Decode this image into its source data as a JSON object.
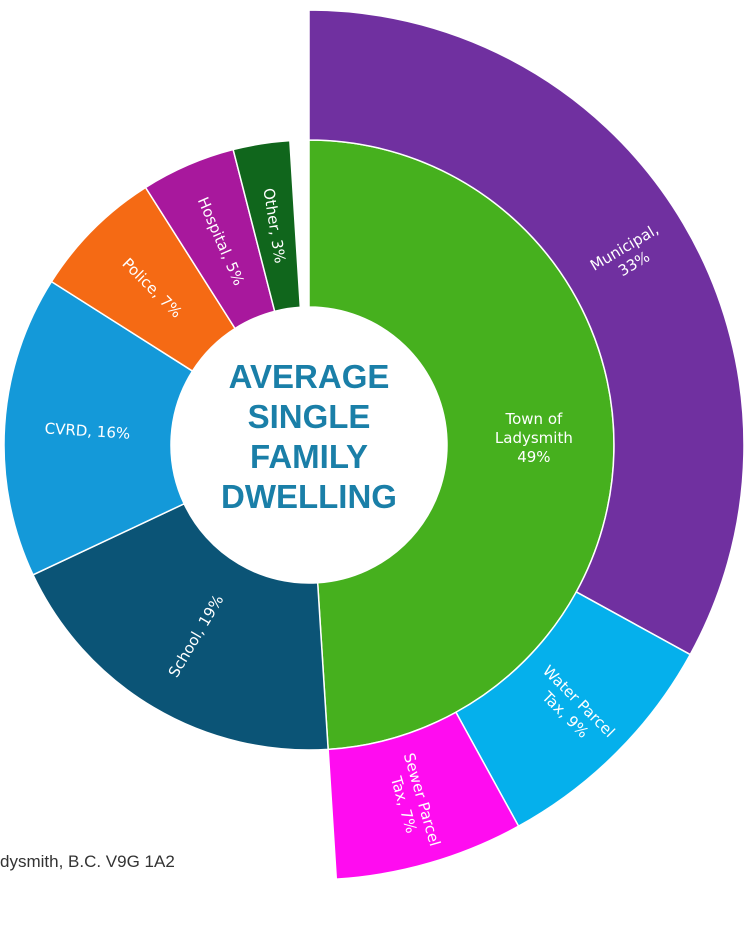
{
  "center": {
    "lines": [
      "AVERAGE",
      "SINGLE",
      "FAMILY",
      "DWELLING"
    ],
    "color": "#1a7fa8"
  },
  "footer": {
    "text": "dysmith, B.C. V9G 1A2"
  },
  "chart_data": {
    "type": "pie",
    "subtype": "sunburst",
    "inner_ring": [
      {
        "label": "Town of Ladysmith",
        "value": 49,
        "color": "#46b01e",
        "text_lines": [
          "Town of",
          "Ladysmith",
          "49%"
        ]
      },
      {
        "label": "School",
        "value": 19,
        "color": "#0b5476",
        "text_lines": [
          "School, 19%"
        ]
      },
      {
        "label": "CVRD",
        "value": 16,
        "color": "#1499d9",
        "text_lines": [
          "CVRD, 16%"
        ]
      },
      {
        "label": "Police",
        "value": 7,
        "color": "#f56a14",
        "text_lines": [
          "Police, 7%"
        ]
      },
      {
        "label": "Hospital",
        "value": 5,
        "color": "#a8189d",
        "text_lines": [
          "Hospital, 5%"
        ]
      },
      {
        "label": "Other",
        "value": 3,
        "color": "#10661c",
        "text_lines": [
          "Other, 3%"
        ]
      }
    ],
    "outer_ring": [
      {
        "label": "Municipal",
        "value": 33,
        "color": "#7030a0",
        "text_lines": [
          "Municipal,",
          "33%"
        ]
      },
      {
        "label": "Water Parcel Tax",
        "value": 9,
        "color": "#05b0ec",
        "text_lines": [
          "Water Parcel",
          "Tax, 9%"
        ]
      },
      {
        "label": "Sewer Parcel Tax",
        "value": 7,
        "color": "#ff0cf0",
        "text_lines": [
          "Sewer Parcel",
          "Tax, 7%"
        ]
      }
    ]
  }
}
